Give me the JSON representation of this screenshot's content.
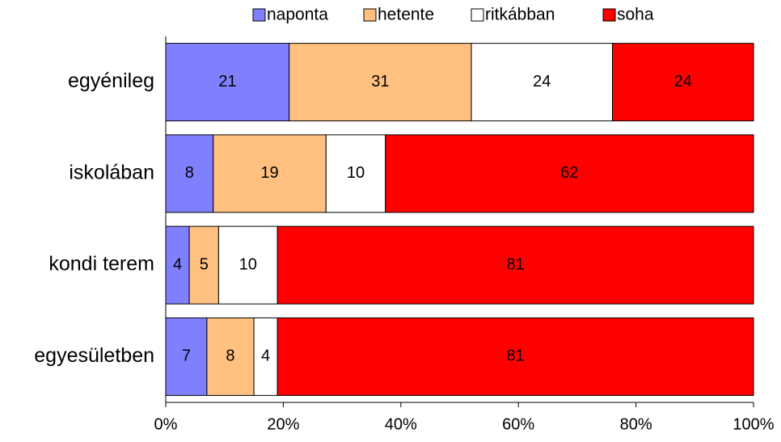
{
  "chart_data": {
    "type": "stacked_bar_100",
    "orientation": "horizontal",
    "categories": [
      "egyénileg",
      "iskolában",
      "kondi terem",
      "egyesületben"
    ],
    "series": [
      {
        "name": "naponta",
        "color": "#8080ff",
        "values": [
          21,
          8,
          4,
          7
        ]
      },
      {
        "name": "hetente",
        "color": "#ffc080",
        "values": [
          31,
          19,
          5,
          8
        ]
      },
      {
        "name": "ritkábban",
        "color": "#ffffff",
        "values": [
          24,
          10,
          10,
          4
        ]
      },
      {
        "name": "soha",
        "color": "#ff0000",
        "values": [
          24,
          62,
          81,
          81
        ]
      }
    ],
    "xlim": [
      0,
      100
    ],
    "xticks": [
      {
        "value": 0,
        "label": "0%"
      },
      {
        "value": 20,
        "label": "20%"
      },
      {
        "value": 40,
        "label": "40%"
      },
      {
        "value": 60,
        "label": "60%"
      },
      {
        "value": 80,
        "label": "80%"
      },
      {
        "value": 100,
        "label": "100%"
      }
    ],
    "legend": "top"
  }
}
